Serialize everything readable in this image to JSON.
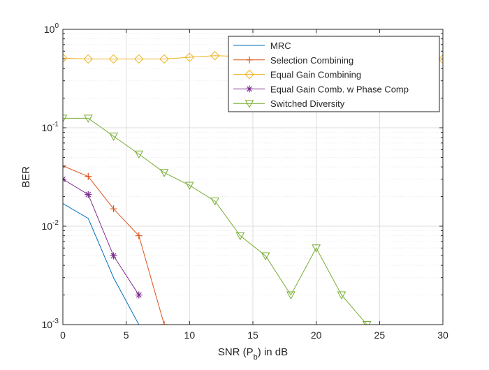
{
  "chart_data": {
    "type": "line",
    "xlabel": "SNR (P",
    "xlabel_subscript": "b",
    "xlabel_suffix": ") in dB",
    "ylabel": "BER",
    "y_scale": "log",
    "xlim": [
      0,
      30
    ],
    "ylim": [
      0.001,
      1
    ],
    "grid": true,
    "minor_grid": true,
    "legend_position": "top-right",
    "x_ticks": [
      "0",
      "5",
      "10",
      "15",
      "20",
      "25",
      "30"
    ],
    "y_ticks": [
      {
        "base": "10",
        "exp": "0",
        "value": 1
      },
      {
        "base": "10",
        "exp": "-1",
        "value": 0.1
      },
      {
        "base": "10",
        "exp": "-2",
        "value": 0.01
      },
      {
        "base": "10",
        "exp": "-3",
        "value": 0.001
      }
    ],
    "series": [
      {
        "name": "MRC",
        "color": "#0072bd",
        "marker": "none",
        "x": [
          0,
          2,
          4,
          6,
          8
        ],
        "y": [
          0.017,
          0.012,
          0.003,
          0.001,
          0.0003
        ]
      },
      {
        "name": "Selection Combining",
        "color": "#d95319",
        "marker": "plus",
        "x": [
          0,
          2,
          4,
          6,
          8
        ],
        "y": [
          0.041,
          0.032,
          0.015,
          0.008,
          0.001
        ]
      },
      {
        "name": "Equal Gain Combining",
        "color": "#edb120",
        "marker": "diamond",
        "x": [
          0,
          2,
          4,
          6,
          8,
          10,
          12,
          14,
          16,
          18,
          20,
          22,
          24,
          26,
          28,
          30
        ],
        "y": [
          0.51,
          0.5,
          0.5,
          0.5,
          0.5,
          0.52,
          0.54,
          0.53,
          0.52,
          0.52,
          0.52,
          0.52,
          0.52,
          0.51,
          0.5,
          0.5
        ]
      },
      {
        "name": "Equal Gain Comb. w Phase Comp",
        "color": "#7e2f8e",
        "marker": "asterisk",
        "x": [
          0,
          2,
          4,
          6
        ],
        "y": [
          0.03,
          0.021,
          0.005,
          0.002
        ]
      },
      {
        "name": "Switched Diversity",
        "color": "#77ac30",
        "marker": "triangle-down",
        "x": [
          0,
          2,
          4,
          6,
          8,
          10,
          12,
          14,
          16,
          18,
          20,
          22,
          24
        ],
        "y": [
          0.125,
          0.125,
          0.082,
          0.054,
          0.035,
          0.026,
          0.018,
          0.008,
          0.005,
          0.002,
          0.006,
          0.002,
          0.001
        ]
      }
    ]
  }
}
